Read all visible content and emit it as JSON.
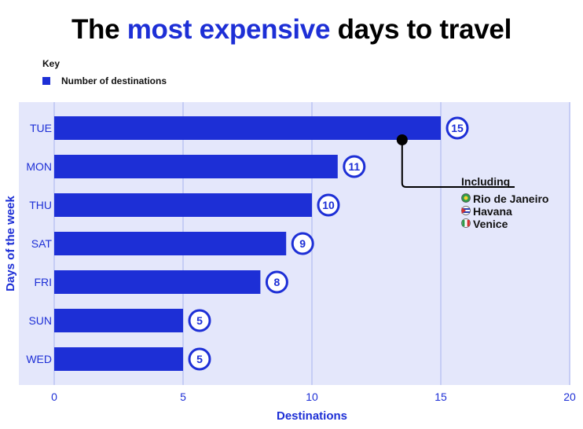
{
  "title": {
    "pre": "The ",
    "highlight": "most expensive",
    "post": " days to travel"
  },
  "key": {
    "heading": "Key",
    "label": "Number of destinations",
    "color": "#1d2fd6"
  },
  "colors": {
    "bar": "#1d2fd6",
    "plot_bg": "#e4e7fb",
    "grid": "#a9b3ef",
    "text": "#1d2fd6"
  },
  "chart_data": {
    "type": "bar",
    "orientation": "horizontal",
    "categories": [
      "TUE",
      "MON",
      "THU",
      "SAT",
      "FRI",
      "SUN",
      "WED"
    ],
    "values": [
      15,
      11,
      10,
      9,
      8,
      5,
      5
    ],
    "series": [
      {
        "name": "Number of destinations",
        "values": [
          15,
          11,
          10,
          9,
          8,
          5,
          5
        ]
      }
    ],
    "xlabel": "Destinations",
    "ylabel": "Days of the week",
    "xlim": [
      0,
      20
    ],
    "xticks": [
      0,
      5,
      10,
      15,
      20
    ],
    "grid": true,
    "annotation": {
      "title": "Including",
      "items": [
        {
          "label": "Rio de Janeiro",
          "icon": "brazil-flag-icon"
        },
        {
          "label": "Havana",
          "icon": "cuba-flag-icon"
        },
        {
          "label": "Venice",
          "icon": "italy-flag-icon"
        }
      ],
      "target_category": "TUE",
      "target_x": 13.5
    }
  }
}
